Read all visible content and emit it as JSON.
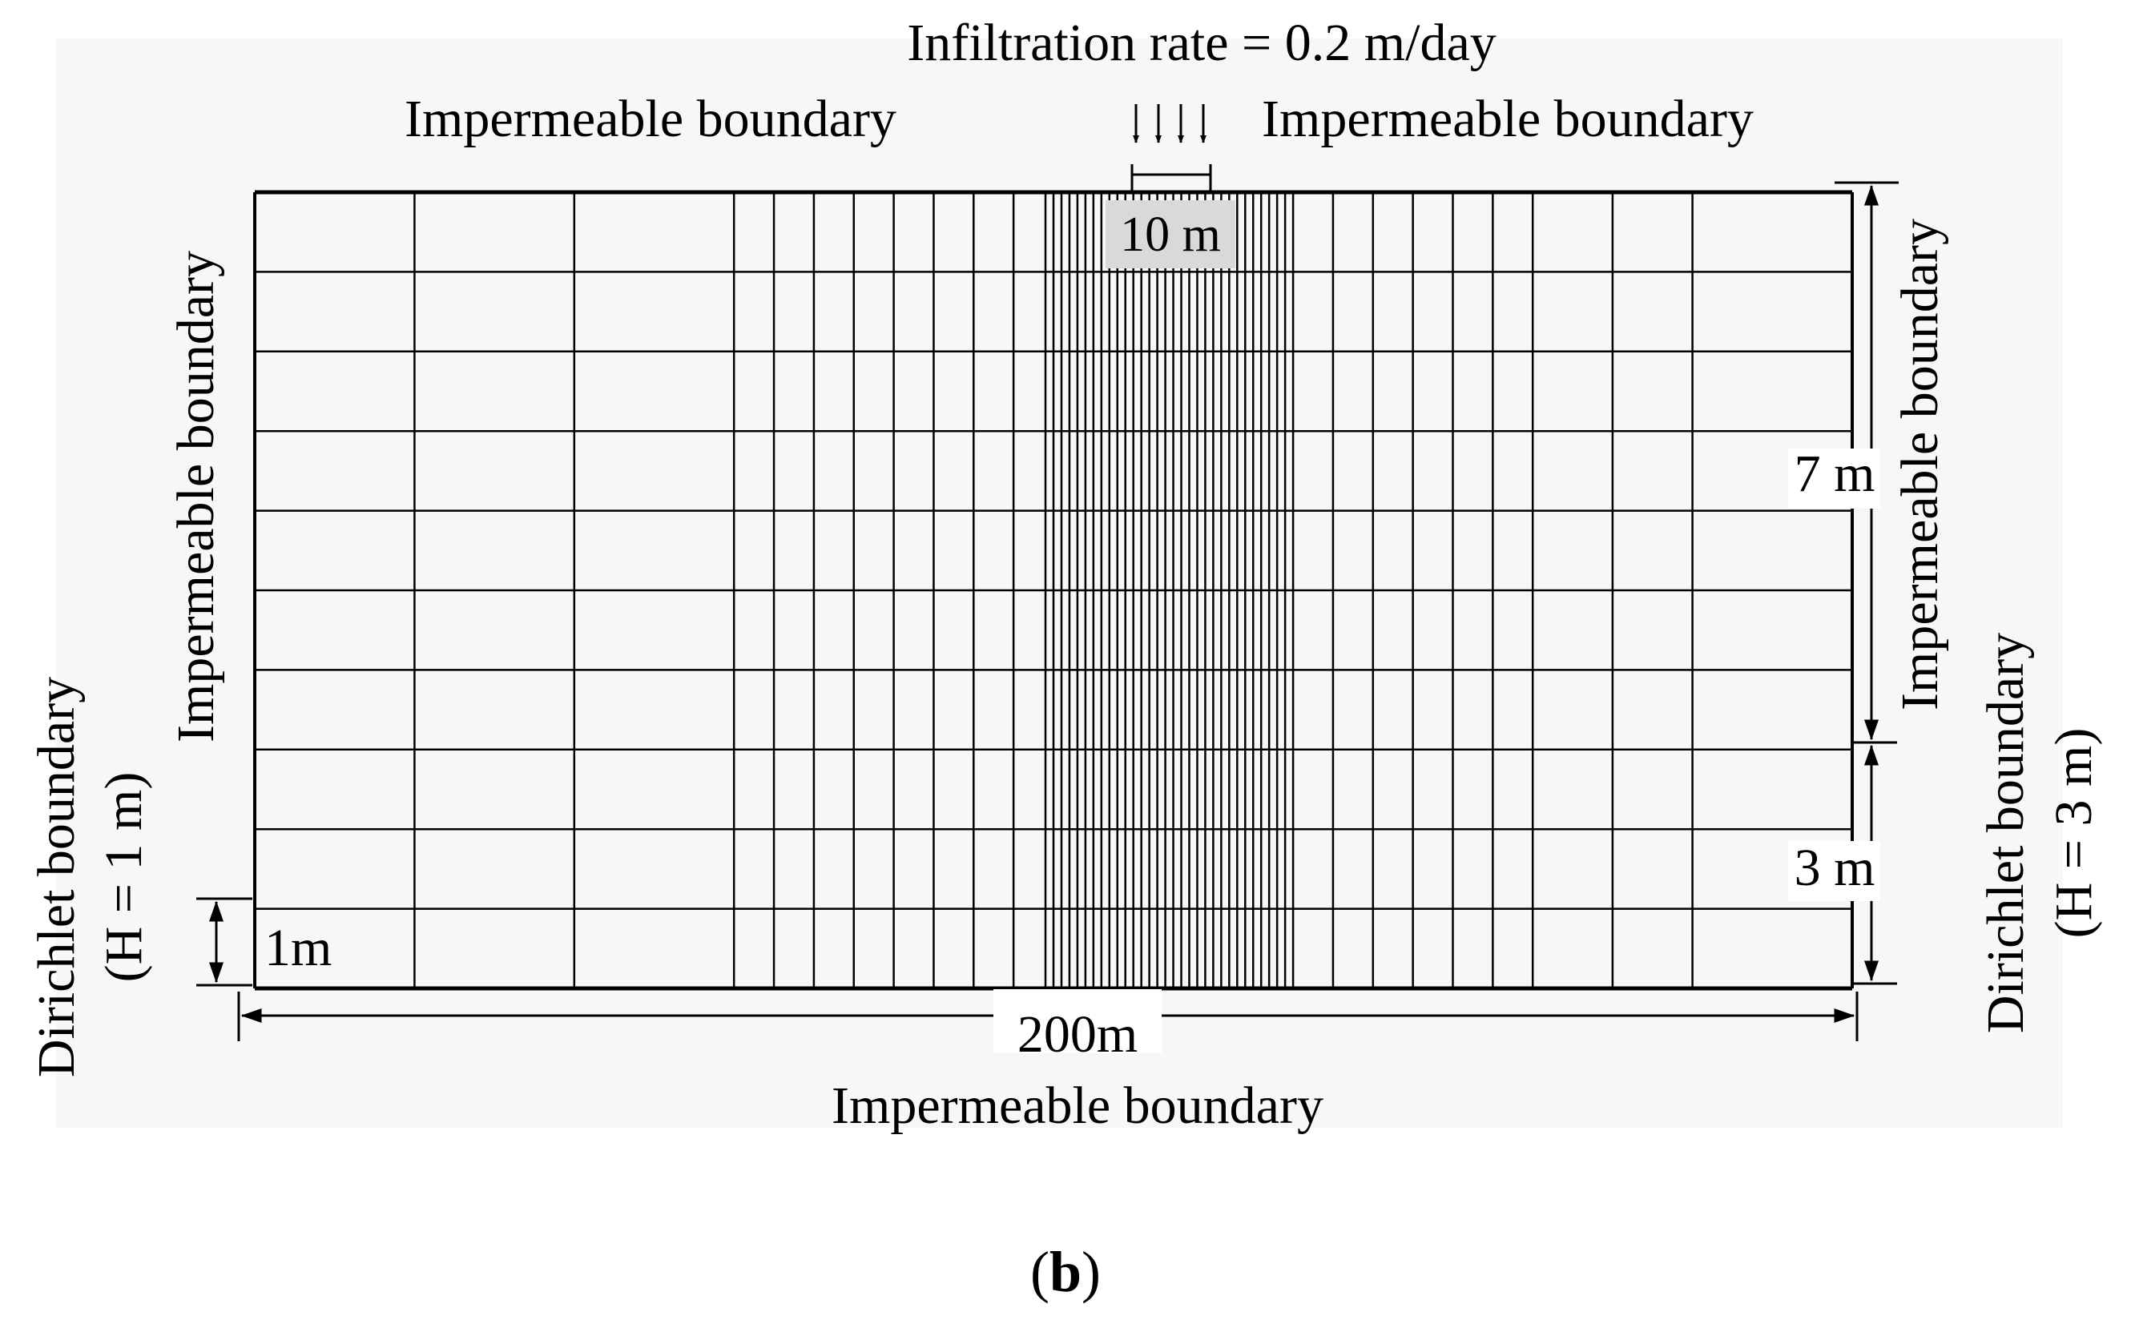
{
  "figure": {
    "caption_letter": "b",
    "caption_open": "(",
    "caption_close": ")"
  },
  "labels": {
    "infiltration": "Infiltration rate = 0.2 m/day",
    "top_left_boundary": "Impermeable boundary",
    "top_right_boundary": "Impermeable boundary",
    "left_boundary": "Impermeable boundary",
    "right_boundary": "Impermeable boundary",
    "bottom_boundary": "Impermeable boundary",
    "left_dirichlet_line1": "Dirichlet boundary",
    "left_dirichlet_line2": "(H = 1 m)",
    "right_dirichlet_line1": "Dirichlet boundary",
    "right_dirichlet_line2": "(H = 3 m)"
  },
  "dimensions": {
    "infiltration_width": "10 m",
    "right_upper_height": "7 m",
    "right_lower_height": "3 m",
    "left_lower_height": "1m",
    "domain_width": "200m"
  },
  "mesh": {
    "columns_left": [
      0,
      20,
      40,
      60,
      65,
      70,
      75,
      80,
      85,
      90,
      95
    ],
    "columns_dense": {
      "from": 99,
      "to": 130,
      "step": 1
    },
    "columns_right": [
      135,
      140,
      145,
      150,
      155,
      160,
      170,
      180,
      200
    ],
    "row_count": 10,
    "infiltration_x_range": [
      110,
      120
    ]
  },
  "colors": {
    "line": "#000000",
    "label_box": "#d9d9d9",
    "background_noise": "#f2f2f2"
  }
}
